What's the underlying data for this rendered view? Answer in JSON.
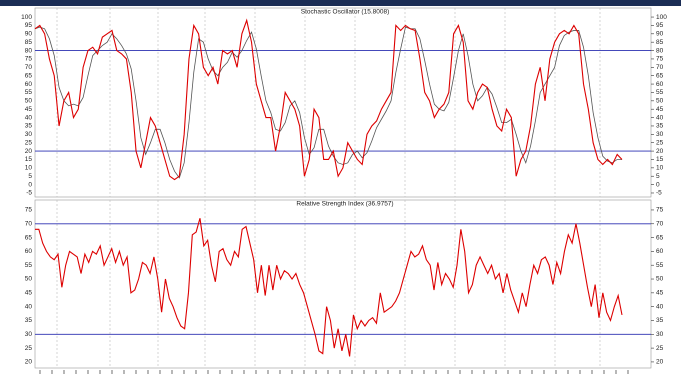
{
  "chart_data": [
    {
      "type": "line",
      "title": "Stochastic Oscillator (15.8008)",
      "ylim": [
        -7.4,
        105.4
      ],
      "yticks": [
        -5,
        0,
        5,
        10,
        15,
        20,
        25,
        30,
        35,
        40,
        45,
        50,
        55,
        60,
        65,
        70,
        75,
        80,
        85,
        90,
        95,
        100
      ],
      "hlines": [
        80,
        20
      ],
      "hline_color": "#2a2fb0",
      "series": [
        {
          "color": "#555555",
          "values": [
            93,
            94,
            93,
            87,
            77,
            58,
            50,
            47,
            48,
            47,
            52,
            65,
            77,
            80,
            83,
            85,
            90,
            87,
            83,
            78,
            69,
            50,
            28,
            18,
            25,
            33,
            33,
            25,
            15,
            8,
            4,
            13,
            37,
            67,
            87,
            85,
            75,
            68,
            65,
            70,
            73,
            79,
            76,
            80,
            86,
            91,
            81,
            65,
            50,
            43,
            33,
            32,
            37,
            47,
            50,
            43,
            28,
            18,
            22,
            33,
            33,
            23,
            17,
            13,
            12,
            13,
            18,
            20,
            16,
            19,
            26,
            34,
            39,
            44,
            50,
            67,
            81,
            94,
            93,
            93,
            87,
            74,
            60,
            48,
            45,
            44,
            49,
            64,
            80,
            90,
            77,
            60,
            50,
            53,
            58,
            54,
            46,
            37,
            37,
            39,
            30,
            20,
            13,
            23,
            38,
            55,
            60,
            65,
            70,
            83,
            89,
            91,
            92,
            92,
            82,
            65,
            43,
            28,
            17,
            14,
            13,
            15,
            15
          ]
        },
        {
          "color": "#dd0000",
          "values": [
            93,
            95,
            90,
            75,
            65,
            35,
            50,
            55,
            40,
            45,
            70,
            80,
            82,
            78,
            88,
            90,
            92,
            80,
            78,
            75,
            55,
            20,
            10,
            25,
            40,
            35,
            25,
            15,
            5,
            3,
            5,
            30,
            75,
            95,
            90,
            70,
            65,
            70,
            60,
            80,
            78,
            80,
            70,
            90,
            98,
            85,
            60,
            50,
            40,
            40,
            20,
            35,
            55,
            50,
            45,
            35,
            5,
            15,
            45,
            40,
            15,
            15,
            20,
            5,
            10,
            25,
            20,
            15,
            12,
            30,
            35,
            38,
            45,
            50,
            55,
            95,
            92,
            95,
            93,
            92,
            75,
            55,
            50,
            40,
            45,
            48,
            55,
            90,
            95,
            85,
            50,
            45,
            55,
            60,
            58,
            45,
            35,
            32,
            45,
            40,
            5,
            15,
            20,
            35,
            60,
            70,
            50,
            75,
            85,
            90,
            92,
            90,
            95,
            90,
            60,
            45,
            25,
            15,
            12,
            15,
            12,
            18,
            15
          ]
        }
      ]
    },
    {
      "type": "line",
      "title": "Relative Strength Index (36.9757)",
      "ylim": [
        17.8,
        78.6
      ],
      "yticks": [
        20,
        25,
        30,
        35,
        40,
        45,
        50,
        55,
        60,
        65,
        70,
        75
      ],
      "hlines": [
        70,
        30
      ],
      "hline_color": "#2a2fb0",
      "series": [
        {
          "color": "#dd0000",
          "values": [
            68,
            68,
            63,
            60,
            58,
            57,
            59,
            47,
            55,
            60,
            59,
            58,
            52,
            59,
            56,
            60,
            59,
            62,
            55,
            58,
            61,
            56,
            60,
            55,
            58,
            45,
            46,
            50,
            56,
            55,
            52,
            58,
            50,
            38,
            50,
            43,
            40,
            36,
            33,
            32,
            45,
            66,
            67,
            72,
            62,
            64,
            55,
            49,
            60,
            61,
            57,
            55,
            60,
            58,
            68,
            69,
            63,
            57,
            45,
            55,
            44,
            55,
            46,
            55,
            50,
            53,
            52,
            50,
            52,
            48,
            45,
            40,
            35,
            30,
            24,
            23,
            40,
            35,
            25,
            32,
            24,
            30,
            22,
            37,
            32,
            35,
            33,
            35,
            36,
            34,
            45,
            38,
            39,
            40,
            42,
            45,
            50,
            55,
            60,
            58,
            59,
            62,
            57,
            55,
            46,
            56,
            48,
            52,
            50,
            47,
            55,
            68,
            60,
            45,
            48,
            55,
            58,
            55,
            52,
            55,
            50,
            52,
            45,
            52,
            46,
            42,
            38,
            45,
            40,
            48,
            55,
            52,
            57,
            58,
            55,
            48,
            56,
            52,
            60,
            66,
            63,
            70,
            63,
            55,
            47,
            40,
            48,
            36,
            45,
            38,
            35,
            40,
            44,
            37
          ]
        }
      ]
    }
  ]
}
